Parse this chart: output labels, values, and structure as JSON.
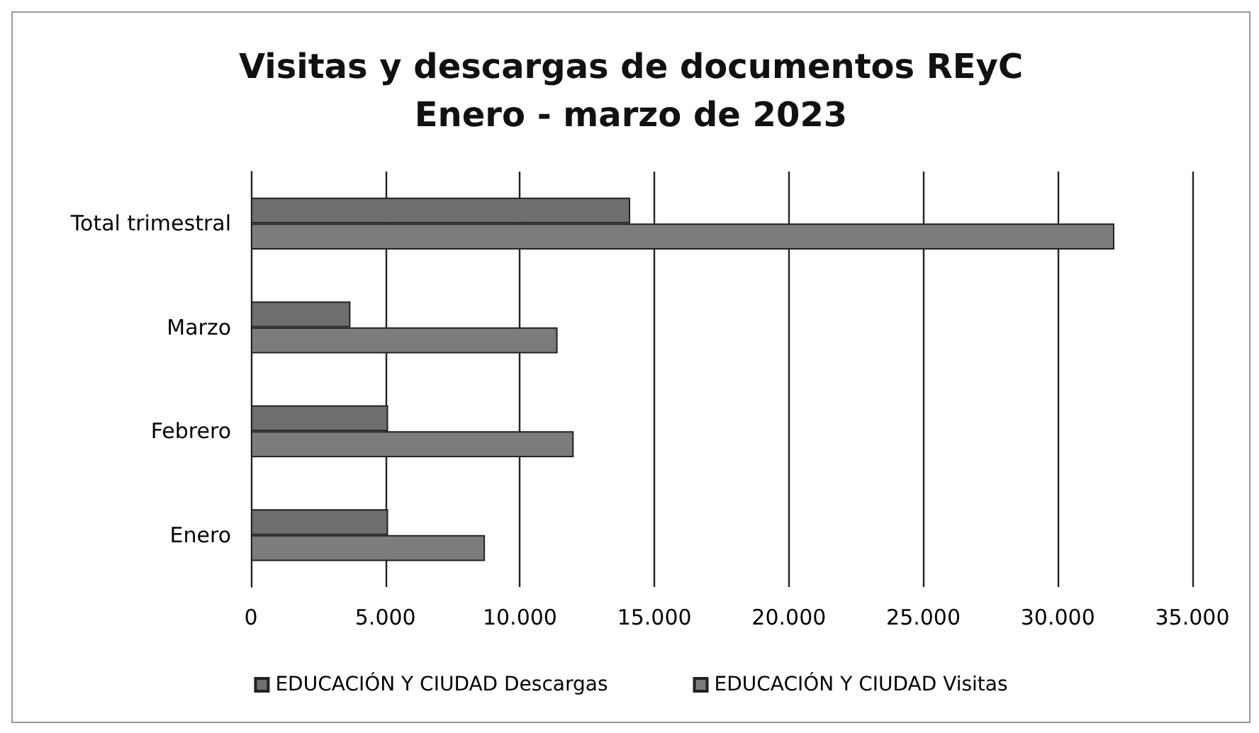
{
  "chart_data": {
    "type": "bar",
    "orientation": "horizontal",
    "title": "Visitas y descargas de documentos REyC\nEnero - marzo de 2023",
    "categories": [
      "Total trimestral",
      "Marzo",
      "Febrero",
      "Enero"
    ],
    "series": [
      {
        "name": "EDUCACIÓN Y CIUDAD Descargas",
        "color": "#6e6e6e",
        "values": [
          14100,
          3700,
          5100,
          5100
        ]
      },
      {
        "name": "EDUCACIÓN Y CIUDAD Visitas",
        "color": "#7c7c7c",
        "values": [
          32100,
          11400,
          12000,
          8700
        ]
      }
    ],
    "xlim": [
      0,
      35000
    ],
    "xticks": [
      0,
      {
        "value": 5000,
        "label": "5.000"
      },
      {
        "value": 10000,
        "label": "10.000"
      },
      {
        "value": 15000,
        "label": "15.000"
      },
      {
        "value": 20000,
        "label": "20.000"
      },
      {
        "value": 25000,
        "label": "25.000"
      },
      {
        "value": 30000,
        "label": "30.000"
      },
      {
        "value": 35000,
        "label": "35.000"
      }
    ],
    "grid": "x",
    "legend": "bottom"
  }
}
